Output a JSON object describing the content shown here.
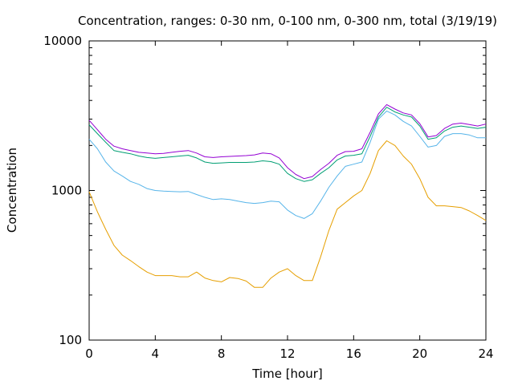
{
  "chart_data": {
    "type": "line",
    "title": "Concentration, ranges: 0-30 nm, 0-100 nm, 0-300 nm, total (3/19/19)",
    "xlabel": "Time [hour]",
    "ylabel": "Concentration",
    "xlim": [
      0,
      24
    ],
    "ylim": [
      100,
      10000
    ],
    "yscale": "log",
    "xticks": [
      0,
      4,
      8,
      12,
      16,
      20,
      24
    ],
    "yticks": [
      100,
      1000,
      10000
    ],
    "xtick_labels": [
      "0",
      "4",
      "8",
      "12",
      "16",
      "20",
      "24"
    ],
    "ytick_labels": [
      "100",
      "1000",
      "10000"
    ],
    "grid": false,
    "legend": "none",
    "x": [
      0,
      0.5,
      1,
      1.5,
      2,
      2.5,
      3,
      3.5,
      4,
      4.5,
      5,
      5.5,
      6,
      6.5,
      7,
      7.5,
      8,
      8.5,
      9,
      9.5,
      10,
      10.5,
      11,
      11.5,
      12,
      12.5,
      13,
      13.5,
      14,
      14.5,
      15,
      15.5,
      16,
      16.5,
      17,
      17.5,
      18,
      18.5,
      19,
      19.5,
      20,
      20.5,
      21,
      21.5,
      22,
      22.5,
      23,
      23.5,
      24
    ],
    "series": [
      {
        "color": "#e69f00",
        "values": [
          980,
          720,
          550,
          430,
          370,
          340,
          310,
          285,
          270,
          270,
          270,
          265,
          265,
          285,
          260,
          250,
          245,
          262,
          258,
          248,
          225,
          225,
          260,
          285,
          300,
          270,
          250,
          250,
          360,
          540,
          750,
          830,
          920,
          1000,
          1300,
          1850,
          2150,
          2000,
          1700,
          1500,
          1200,
          900,
          790,
          790,
          780,
          770,
          730,
          680,
          630
        ]
      },
      {
        "color": "#56b4e9",
        "values": [
          2200,
          1900,
          1550,
          1350,
          1250,
          1150,
          1100,
          1030,
          1000,
          990,
          985,
          980,
          985,
          940,
          900,
          870,
          880,
          870,
          850,
          830,
          820,
          830,
          850,
          840,
          740,
          680,
          650,
          700,
          850,
          1050,
          1250,
          1450,
          1500,
          1550,
          2100,
          3000,
          3400,
          3200,
          2900,
          2700,
          2300,
          1950,
          2000,
          2300,
          2400,
          2400,
          2350,
          2250,
          2250
        ]
      },
      {
        "color": "#009e73",
        "values": [
          2750,
          2400,
          2100,
          1850,
          1800,
          1760,
          1700,
          1660,
          1640,
          1660,
          1680,
          1700,
          1720,
          1650,
          1550,
          1520,
          1530,
          1540,
          1540,
          1540,
          1550,
          1580,
          1560,
          1500,
          1300,
          1200,
          1150,
          1180,
          1300,
          1420,
          1600,
          1700,
          1720,
          1760,
          2300,
          3100,
          3600,
          3350,
          3200,
          3100,
          2700,
          2200,
          2250,
          2500,
          2650,
          2700,
          2650,
          2600,
          2650
        ]
      },
      {
        "color": "#9400d3",
        "values": [
          2950,
          2550,
          2200,
          1980,
          1900,
          1850,
          1800,
          1780,
          1760,
          1770,
          1800,
          1830,
          1850,
          1780,
          1680,
          1660,
          1680,
          1690,
          1700,
          1710,
          1730,
          1780,
          1760,
          1650,
          1420,
          1280,
          1200,
          1240,
          1380,
          1520,
          1720,
          1820,
          1830,
          1900,
          2450,
          3250,
          3750,
          3500,
          3300,
          3200,
          2800,
          2280,
          2330,
          2600,
          2780,
          2820,
          2760,
          2700,
          2780
        ]
      }
    ]
  }
}
